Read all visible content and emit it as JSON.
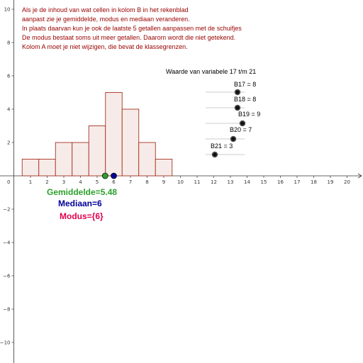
{
  "info_text": [
    "Als je de inhoud van wat cellen in kolom B in het rekenblad",
    "aanpast zie je gemiddelde, modus en mediaan veranderen.",
    "In plaats daarvan kun je ook de laatste 5 getallen aanpassen met de schuifjes",
    "De modus bestaat soms uit meer getallen. Daarom wordt die niet getekend.",
    "Kolom A moet je niet wijzigen, die bevat de klassegrenzen."
  ],
  "stats": {
    "mean_label": "Gemiddelde=5.48",
    "median_label": "Mediaan=6",
    "mode_label": "Modus={6}"
  },
  "slider_panel": {
    "title": "Waarde van variabele 17 t/m 21",
    "sliders": [
      {
        "label": "B17 = 8",
        "value": 8
      },
      {
        "label": "B18 = 8",
        "value": 8
      },
      {
        "label": "B19 = 9",
        "value": 9
      },
      {
        "label": "B20 = 7",
        "value": 7
      },
      {
        "label": "B21 = 3",
        "value": 3
      }
    ]
  },
  "colors": {
    "info_text": "#990000",
    "mean": "#2ca02c",
    "median": "#000099",
    "mode": "#e0004d",
    "bar_fill": "#f7ebe9",
    "bar_stroke": "#a3321f"
  },
  "chart_data": {
    "type": "bar",
    "x": [
      1,
      2,
      3,
      4,
      5,
      6,
      7,
      8,
      9
    ],
    "values": [
      1,
      1,
      2,
      2,
      3,
      5,
      4,
      2,
      1
    ],
    "bar_width": 1,
    "mean": 5.48,
    "median": 6,
    "x_ticks": [
      1,
      2,
      3,
      4,
      5,
      6,
      7,
      8,
      9,
      10,
      11,
      12,
      13,
      14,
      15,
      16,
      17,
      18,
      19,
      20
    ],
    "y_ticks": [
      -10,
      -8,
      -6,
      -4,
      -2,
      2,
      4,
      6,
      8,
      10
    ],
    "origin_label": "0",
    "grid": false
  }
}
